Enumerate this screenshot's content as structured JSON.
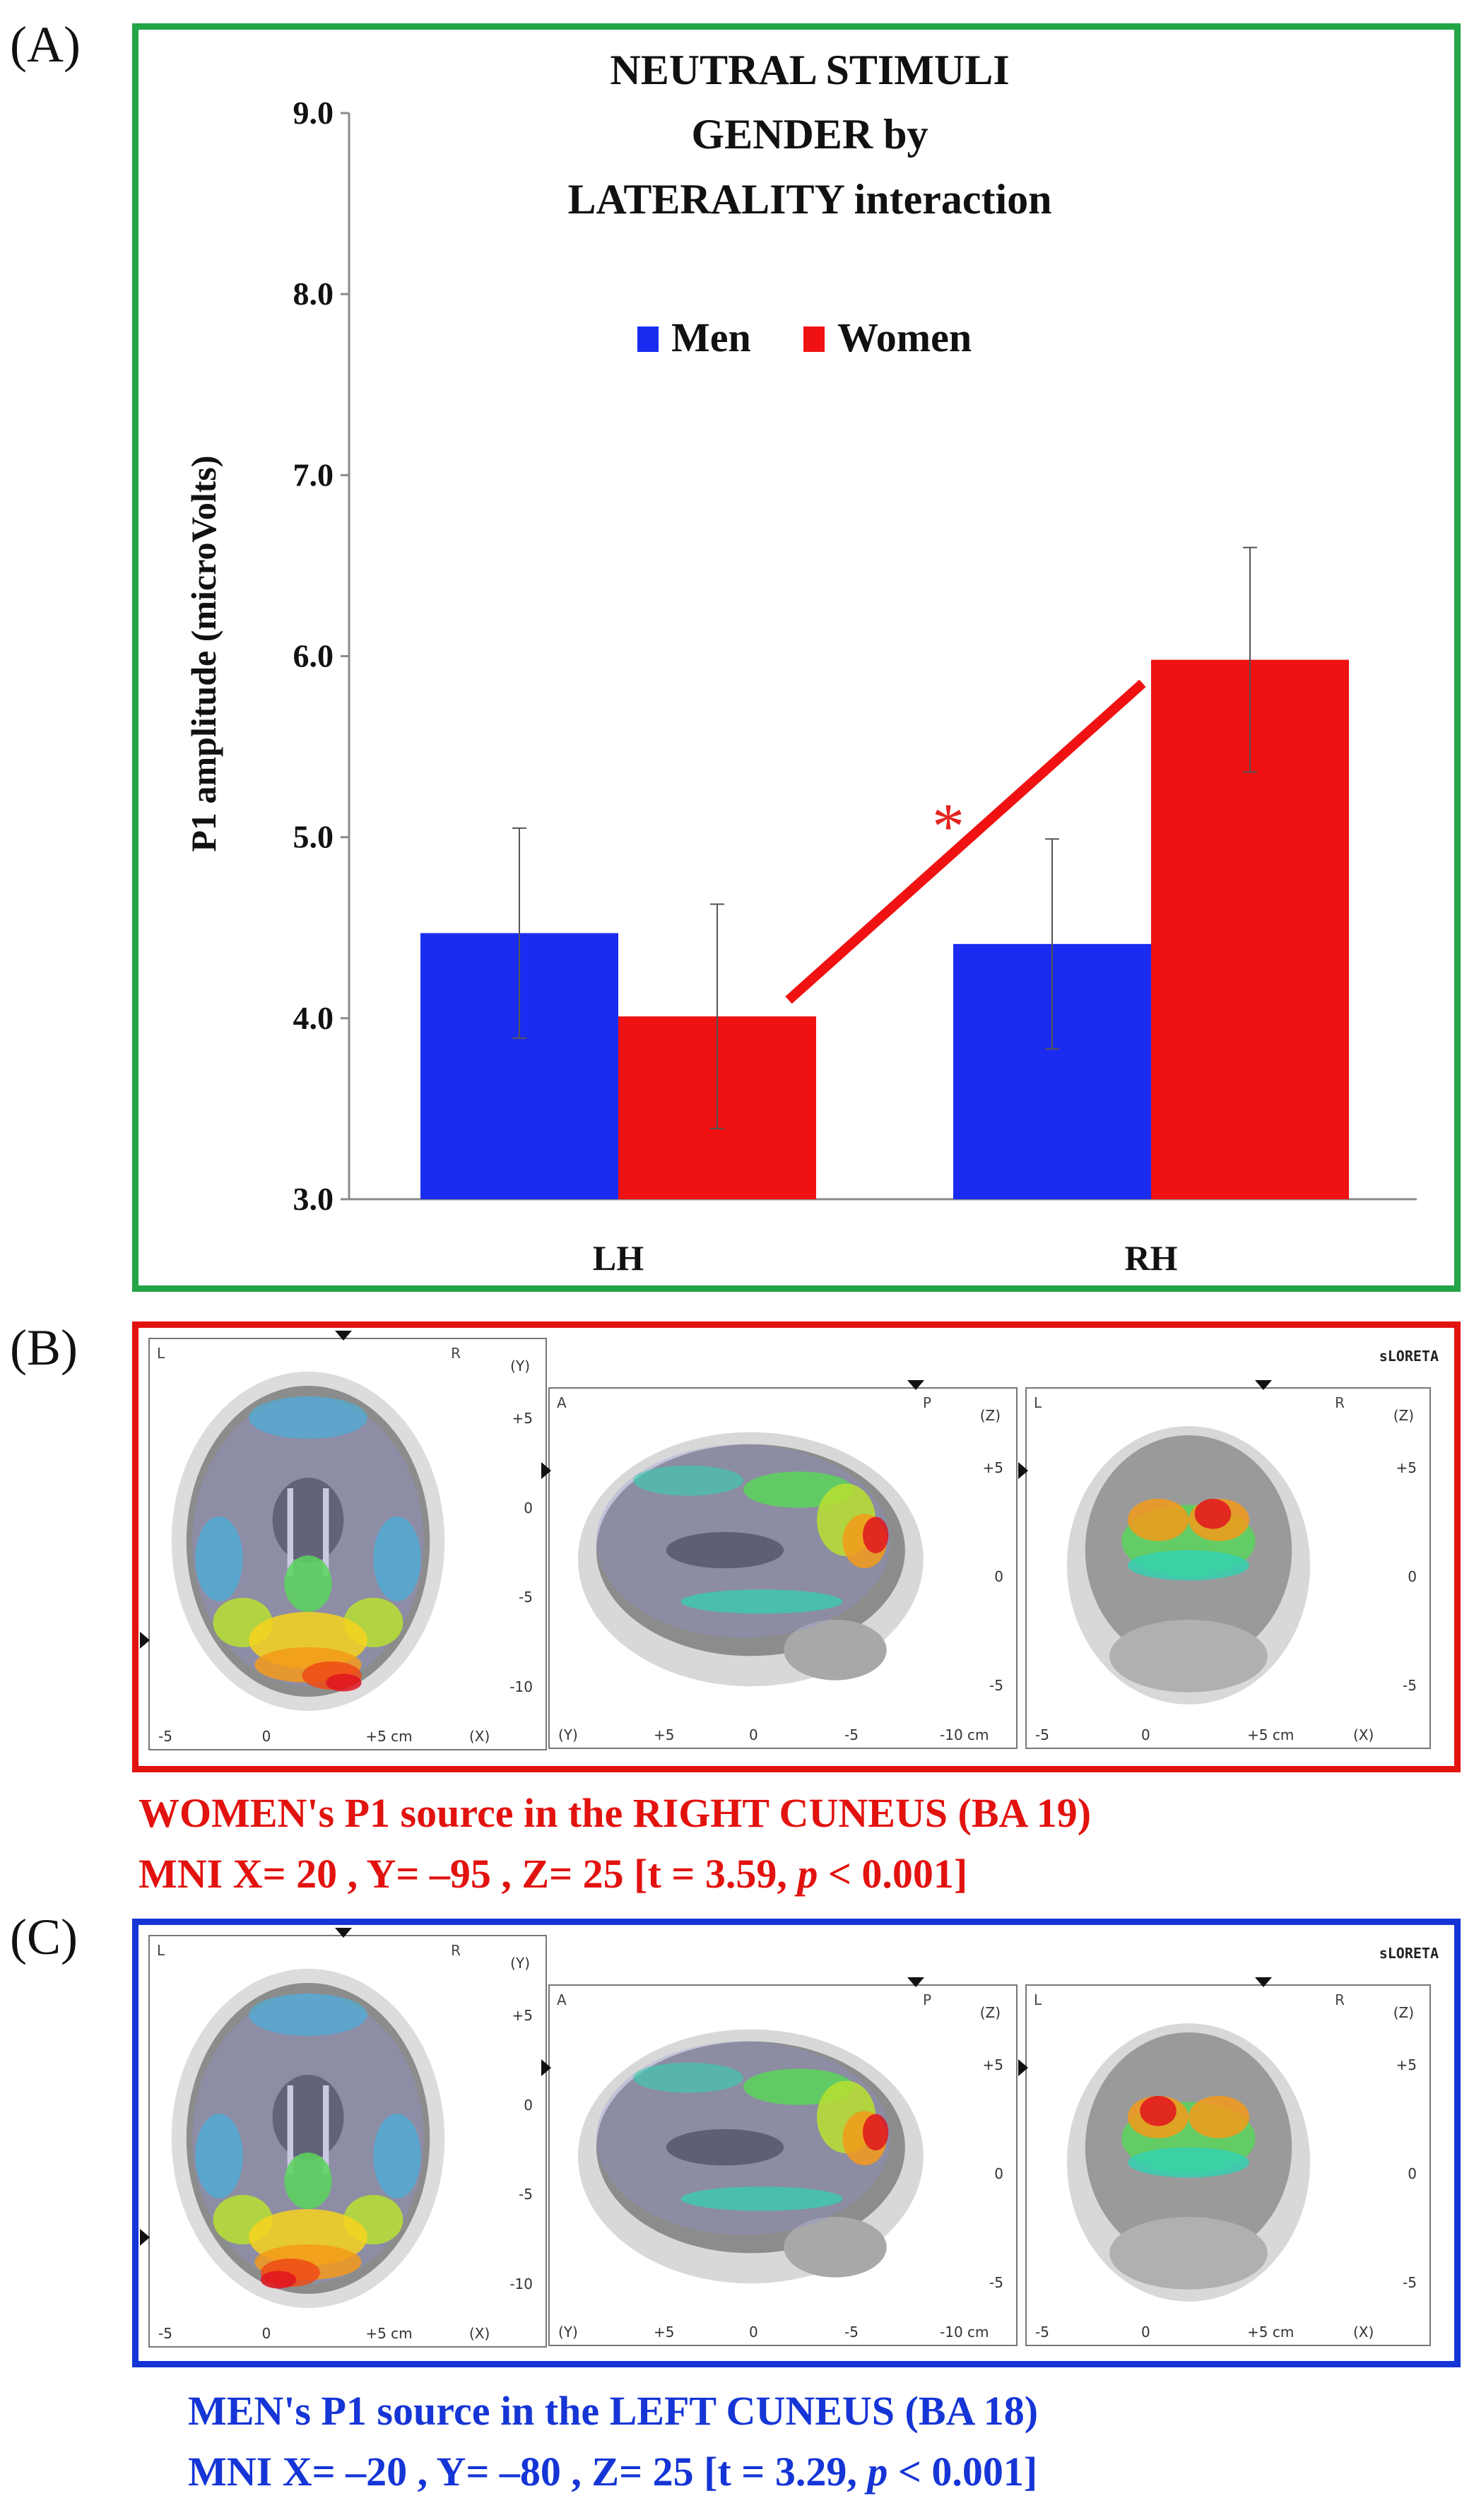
{
  "panel_labels": {
    "a": "(A)",
    "b": "(B)",
    "c": "(C)"
  },
  "chart_data": {
    "type": "bar",
    "title_lines": [
      "NEUTRAL STIMULI",
      "GENDER by",
      "LATERALITY interaction"
    ],
    "categories": [
      "LH",
      "RH"
    ],
    "series": [
      {
        "name": "Men",
        "color": "#1a2cf0",
        "values": [
          4.47,
          4.41
        ],
        "errors": [
          0.58,
          0.58
        ]
      },
      {
        "name": "Women",
        "color": "#f01212",
        "values": [
          4.01,
          5.98
        ],
        "errors": [
          0.62,
          0.62
        ]
      }
    ],
    "ylabel": "P1 amplitude  (microVolts)",
    "xlabel": "",
    "ylim": [
      3.0,
      9.0
    ],
    "yticks": [
      "3.0",
      "4.0",
      "5.0",
      "6.0",
      "7.0",
      "8.0",
      "9.0"
    ],
    "significance": {
      "symbol": "*",
      "from": [
        4.1,
        "LH-Women"
      ],
      "to": [
        5.85,
        "RH-Men"
      ]
    },
    "legend_position": "top-center"
  },
  "brain_panels": {
    "b": {
      "software": "sLORETA",
      "axial": {
        "left": "L",
        "right": "R",
        "axis": "(Y)",
        "v_ticks": [
          "+5",
          "0",
          "-5",
          "-10"
        ],
        "h_ticks": [
          "-5",
          "0",
          "+5 cm",
          "(X)"
        ]
      },
      "sagittal": {
        "left": "A",
        "right": "P",
        "axis": "(Z)",
        "v_ticks": [
          "+5",
          "0",
          "-5"
        ],
        "h_ticks": [
          "(Y)",
          "+5",
          "0",
          "-5",
          "-10 cm"
        ]
      },
      "coronal": {
        "left": "L",
        "right": "R",
        "axis": "(Z)",
        "v_ticks": [
          "+5",
          "0",
          "-5"
        ],
        "h_ticks": [
          "-5",
          "0",
          "+5 cm",
          "(X)"
        ]
      }
    },
    "c": {
      "software": "sLORETA",
      "axial": {
        "left": "L",
        "right": "R",
        "axis": "(Y)",
        "v_ticks": [
          "+5",
          "0",
          "-5",
          "-10"
        ],
        "h_ticks": [
          "-5",
          "0",
          "+5 cm",
          "(X)"
        ]
      },
      "sagittal": {
        "left": "A",
        "right": "P",
        "axis": "(Z)",
        "v_ticks": [
          "+5",
          "0",
          "-5"
        ],
        "h_ticks": [
          "(Y)",
          "+5",
          "0",
          "-5",
          "-10 cm"
        ]
      },
      "coronal": {
        "left": "L",
        "right": "R",
        "axis": "(Z)",
        "v_ticks": [
          "+5",
          "0",
          "-5"
        ],
        "h_ticks": [
          "-5",
          "0",
          "+5 cm",
          "(X)"
        ]
      }
    }
  },
  "captions": {
    "b_line1": "WOMEN's P1 source in the RIGHT CUNEUS (BA 19)",
    "b_line2_pre": "MNI  X= 20 , Y= –95 , Z= 25 [t = 3.59, ",
    "b_line2_p": "p",
    "b_line2_post": " < 0.001]",
    "c_line1": "MEN's P1 source in the LEFT CUNEUS (BA 18)",
    "c_line2_pre": "MNI  X= –20 , Y= –80 , Z= 25 [t = 3.29, ",
    "c_line2_p": "p",
    "c_line2_post": " < 0.001]"
  },
  "colors": {
    "panel_a_border": "#22a447",
    "panel_b_border": "#e2120f",
    "panel_c_border": "#1535d6"
  }
}
